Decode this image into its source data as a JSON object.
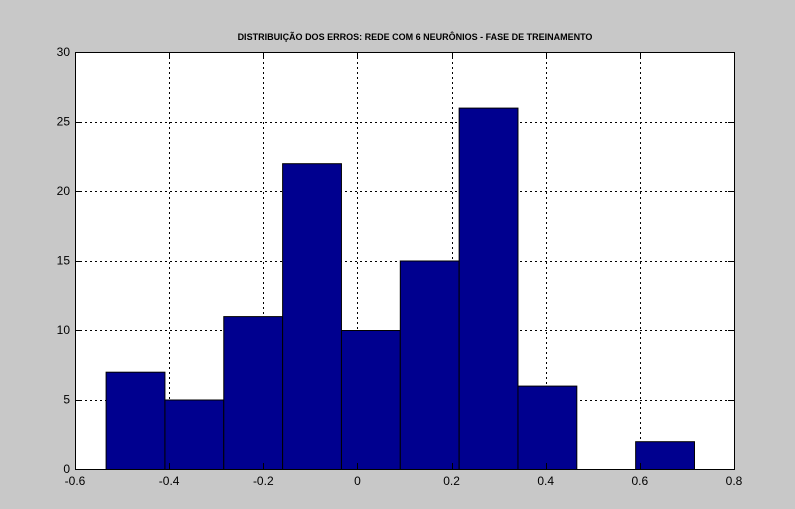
{
  "chart_data": {
    "type": "bar",
    "title": "DISTRIBUIÇÃO DOS ERROS: REDE COM 6 NEURÔNIOS - FASE DE TREINAMENTO",
    "xlabel": "",
    "ylabel": "",
    "xlim": [
      -0.6,
      0.8
    ],
    "ylim": [
      0,
      30
    ],
    "x_ticks": [
      -0.6,
      -0.4,
      -0.2,
      0,
      0.2,
      0.4,
      0.6,
      0.8
    ],
    "x_tick_labels": [
      "-0.6",
      "-0.4",
      "-0.2",
      "0",
      "0.2",
      "0.4",
      "0.6",
      "0.8"
    ],
    "y_ticks": [
      0,
      5,
      10,
      15,
      20,
      25,
      30
    ],
    "y_tick_labels": [
      "0",
      "5",
      "10",
      "15",
      "20",
      "25",
      "30"
    ],
    "bins": [
      {
        "x0": -0.535,
        "x1": -0.41,
        "count": 7
      },
      {
        "x0": -0.41,
        "x1": -0.285,
        "count": 5
      },
      {
        "x0": -0.285,
        "x1": -0.16,
        "count": 11
      },
      {
        "x0": -0.16,
        "x1": -0.035,
        "count": 22
      },
      {
        "x0": -0.035,
        "x1": 0.09,
        "count": 10
      },
      {
        "x0": 0.09,
        "x1": 0.215,
        "count": 15
      },
      {
        "x0": 0.215,
        "x1": 0.34,
        "count": 26
      },
      {
        "x0": 0.34,
        "x1": 0.465,
        "count": 6
      },
      {
        "x0": 0.465,
        "x1": 0.59,
        "count": 0
      },
      {
        "x0": 0.59,
        "x1": 0.715,
        "count": 2
      }
    ],
    "grid": true,
    "bar_color": "#00008f",
    "plot_background": "#ffffff",
    "figure_background": "#c8c8c8"
  }
}
